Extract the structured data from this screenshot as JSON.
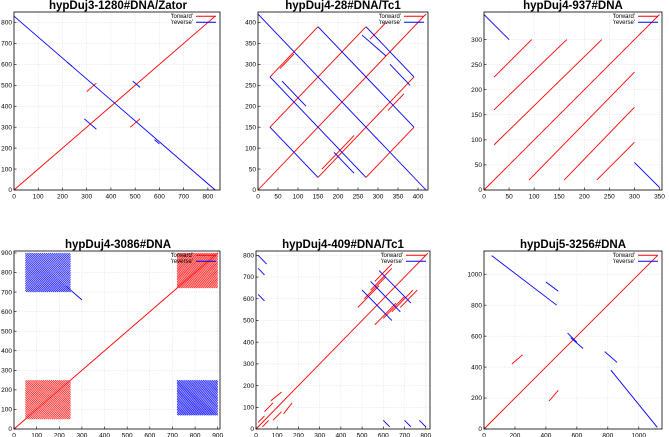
{
  "chart_data": [
    {
      "type": "line",
      "title": "hypDuj3-1280#DNA/Zator",
      "xlim": [
        0,
        850
      ],
      "ylim": [
        0,
        850
      ],
      "xticks": [
        "0",
        "100",
        "200",
        "300",
        "400",
        "500",
        "600",
        "700",
        "800"
      ],
      "yticks": [
        "0",
        "100",
        "200",
        "300",
        "400",
        "500",
        "600",
        "700",
        "800"
      ],
      "legend": [
        "'forward'",
        "'reverse'"
      ],
      "colors": {
        "forward": "#ff0000",
        "reverse": "#0000ff"
      },
      "series": [
        {
          "name": "forward",
          "segments": [
            [
              0,
              0,
              830,
              830
            ],
            [
              300,
              470,
              340,
              510
            ],
            [
              480,
              300,
              520,
              340
            ]
          ]
        },
        {
          "name": "reverse",
          "segments": [
            [
              0,
              830,
              830,
              0
            ],
            [
              220,
              610,
              240,
              590
            ],
            [
              290,
              340,
              340,
              290
            ],
            [
              490,
              520,
              520,
              490
            ],
            [
              580,
              240,
              600,
              220
            ]
          ]
        }
      ]
    },
    {
      "type": "line",
      "title": "hypDuj4-28#DNA/Tc1",
      "xlim": [
        0,
        425
      ],
      "ylim": [
        0,
        425
      ],
      "xticks": [
        "0",
        "50",
        "100",
        "150",
        "200",
        "250",
        "300",
        "350",
        "400"
      ],
      "yticks": [
        "0",
        "50",
        "100",
        "150",
        "200",
        "250",
        "300",
        "350",
        "400"
      ],
      "legend": [
        "'forward'",
        "'reverse'"
      ],
      "colors": {
        "forward": "#ff0000",
        "reverse": "#0000ff"
      },
      "series": [
        {
          "name": "forward",
          "segments": [
            [
              0,
              0,
              420,
              420
            ],
            [
              30,
              150,
              270,
              390
            ],
            [
              150,
              30,
              390,
              270
            ],
            [
              30,
              270,
              150,
              390
            ],
            [
              270,
              30,
              390,
              150
            ],
            [
              55,
              290,
              90,
              325
            ],
            [
              160,
              50,
              240,
              130
            ],
            [
              325,
              190,
              365,
              230
            ],
            [
              280,
              360,
              320,
              400
            ]
          ]
        },
        {
          "name": "reverse",
          "segments": [
            [
              0,
              420,
              420,
              0
            ],
            [
              30,
              270,
              270,
              30
            ],
            [
              150,
              390,
              390,
              150
            ],
            [
              30,
              150,
              150,
              30
            ],
            [
              270,
              390,
              390,
              270
            ],
            [
              60,
              260,
              120,
              200
            ],
            [
              190,
              90,
              240,
              40
            ],
            [
              330,
              300,
              380,
              250
            ],
            [
              260,
              370,
              320,
              320
            ]
          ]
        }
      ]
    },
    {
      "type": "line",
      "title": "hypDuj4-937#DNA",
      "xlim": [
        0,
        355
      ],
      "ylim": [
        0,
        355
      ],
      "xticks": [
        "0",
        "50",
        "100",
        "150",
        "200",
        "250",
        "300",
        "350"
      ],
      "yticks": [
        "0",
        "50",
        "100",
        "150",
        "200",
        "250",
        "300"
      ],
      "legend": [
        "'forward'",
        "'reverse'"
      ],
      "colors": {
        "forward": "#ff0000",
        "reverse": "#0000ff"
      },
      "series": [
        {
          "name": "forward",
          "segments": [
            [
              0,
              0,
              350,
              350
            ],
            [
              20,
              90,
              235,
              300
            ],
            [
              20,
              160,
              165,
              300
            ],
            [
              20,
              225,
              95,
              300
            ],
            [
              90,
              20,
              300,
              235
            ],
            [
              160,
              20,
              300,
              165
            ],
            [
              225,
              20,
              300,
              95
            ]
          ]
        },
        {
          "name": "reverse",
          "segments": [
            [
              0,
              350,
              50,
              300
            ],
            [
              300,
              55,
              350,
              5
            ]
          ]
        }
      ]
    },
    {
      "type": "line",
      "title": "hypDuj4-3086#DNA",
      "xlim": [
        0,
        910
      ],
      "ylim": [
        0,
        910
      ],
      "xticks": [
        "0",
        "100",
        "200",
        "300",
        "400",
        "500",
        "600",
        "700",
        "800",
        "900"
      ],
      "yticks": [
        "0",
        "100",
        "200",
        "300",
        "400",
        "500",
        "600",
        "700",
        "800",
        "900"
      ],
      "legend": [
        "'forward'",
        "'reverse'"
      ],
      "colors": {
        "forward": "#ff0000",
        "reverse": "#0000ff"
      },
      "blocks": [
        {
          "color": "#ff0000",
          "x": [
            50,
            250
          ],
          "y": [
            50,
            250
          ],
          "dir": "forward"
        },
        {
          "color": "#ff0000",
          "x": [
            720,
            900
          ],
          "y": [
            720,
            900
          ],
          "dir": "forward"
        },
        {
          "color": "#0000ff",
          "x": [
            50,
            250
          ],
          "y": [
            720,
            900
          ],
          "dir": "reverse"
        },
        {
          "color": "#0000ff",
          "x": [
            720,
            900
          ],
          "y": [
            50,
            250
          ],
          "dir": "reverse"
        }
      ],
      "series": [
        {
          "name": "forward",
          "segments": [
            [
              0,
              0,
              900,
              900
            ]
          ]
        },
        {
          "name": "reverse",
          "segments": [
            [
              230,
              730,
              300,
              660
            ]
          ]
        }
      ]
    },
    {
      "type": "line",
      "title": "hypDuj4-409#DNA/Tc1",
      "xlim": [
        0,
        820
      ],
      "ylim": [
        0,
        820
      ],
      "xticks": [
        "0",
        "100",
        "200",
        "300",
        "400",
        "500",
        "600",
        "700",
        "800"
      ],
      "yticks": [
        "0",
        "100",
        "200",
        "300",
        "400",
        "500",
        "600",
        "700",
        "800"
      ],
      "legend": [
        "'forward'",
        "'reverse'"
      ],
      "colors": {
        "forward": "#ff0000",
        "reverse": "#0000ff"
      },
      "series": [
        {
          "name": "forward",
          "segments": [
            [
              0,
              0,
              810,
              810
            ],
            [
              480,
              560,
              580,
              660
            ],
            [
              510,
              600,
              610,
              700
            ],
            [
              540,
              640,
              640,
              740
            ],
            [
              560,
              480,
              660,
              580
            ],
            [
              600,
              510,
              700,
              610
            ],
            [
              640,
              540,
              740,
              640
            ],
            [
              560,
              680,
              640,
              760
            ],
            [
              680,
              560,
              760,
              640
            ],
            [
              40,
              80,
              80,
              120
            ],
            [
              80,
              40,
              120,
              80
            ],
            [
              70,
              130,
              120,
              170
            ],
            [
              130,
              70,
              170,
              120
            ],
            [
              10,
              30,
              40,
              60
            ],
            [
              30,
              10,
              60,
              40
            ]
          ]
        },
        {
          "name": "reverse",
          "segments": [
            [
              540,
              680,
              680,
              540
            ],
            [
              580,
              730,
              730,
              580
            ],
            [
              500,
              640,
              640,
              500
            ],
            [
              10,
              800,
              50,
              760
            ],
            [
              10,
              740,
              40,
              710
            ],
            [
              10,
              620,
              40,
              590
            ],
            [
              600,
              40,
              630,
              10
            ],
            [
              700,
              40,
              730,
              10
            ],
            [
              770,
              40,
              800,
              10
            ]
          ]
        }
      ]
    },
    {
      "type": "line",
      "title": "hypDuj5-3256#DNA",
      "xlim": [
        0,
        1150
      ],
      "ylim": [
        0,
        1150
      ],
      "xticks": [
        "0",
        "200",
        "400",
        "600",
        "800",
        "1000"
      ],
      "yticks": [
        "0",
        "200",
        "400",
        "600",
        "800",
        "1000"
      ],
      "legend": [
        "'forward'",
        "'reverse'"
      ],
      "colors": {
        "forward": "#ff0000",
        "reverse": "#0000ff"
      },
      "series": [
        {
          "name": "forward",
          "segments": [
            [
              0,
              0,
              1120,
              1120
            ],
            [
              180,
              420,
              250,
              480
            ],
            [
              420,
              180,
              480,
              250
            ]
          ]
        },
        {
          "name": "reverse",
          "segments": [
            [
              50,
              1120,
              470,
              800
            ],
            [
              400,
              950,
              480,
              890
            ],
            [
              540,
              620,
              600,
              560
            ],
            [
              560,
              590,
              640,
              520
            ],
            [
              780,
              500,
              860,
              430
            ],
            [
              820,
              380,
              1120,
              10
            ]
          ]
        }
      ]
    }
  ]
}
